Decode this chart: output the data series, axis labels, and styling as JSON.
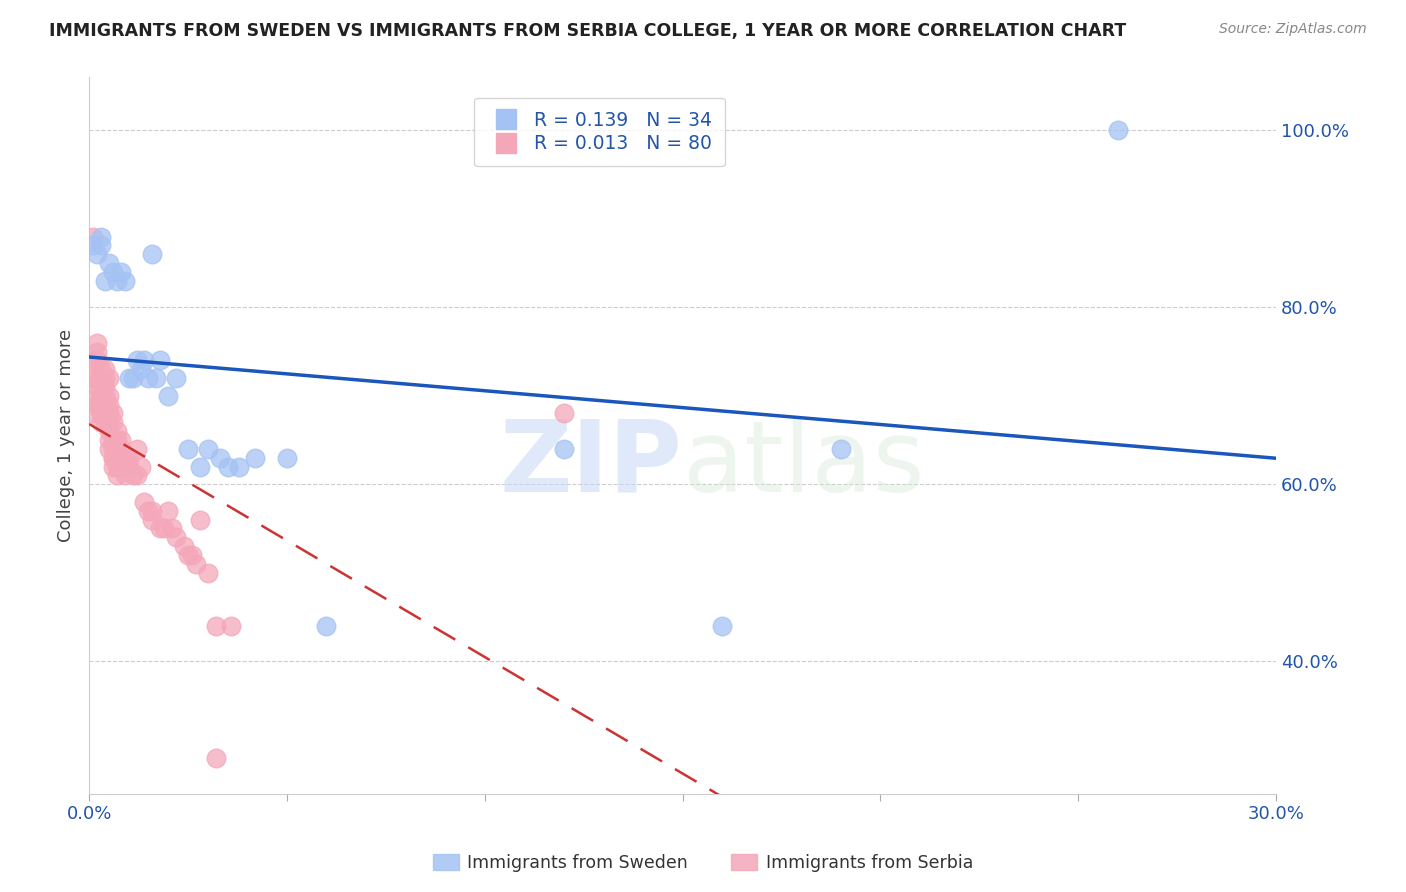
{
  "title": "IMMIGRANTS FROM SWEDEN VS IMMIGRANTS FROM SERBIA COLLEGE, 1 YEAR OR MORE CORRELATION CHART",
  "source": "Source: ZipAtlas.com",
  "ylabel": "College, 1 year or more",
  "legend_sweden": "Immigrants from Sweden",
  "legend_serbia": "Immigrants from Serbia",
  "R_sweden": 0.139,
  "N_sweden": 34,
  "R_serbia": 0.013,
  "N_serbia": 80,
  "xlim": [
    0.0,
    0.3
  ],
  "ylim": [
    0.25,
    1.06
  ],
  "xticks": [
    0.0,
    0.05,
    0.1,
    0.15,
    0.2,
    0.25,
    0.3
  ],
  "xtick_labels": [
    "0.0%",
    "",
    "",
    "",
    "",
    "",
    "30.0%"
  ],
  "yticks_right": [
    0.4,
    0.6,
    0.8,
    1.0
  ],
  "ytick_labels_right": [
    "40.0%",
    "60.0%",
    "80.0%",
    "100.0%"
  ],
  "color_sweden": "#a4c2f4",
  "color_serbia": "#f4a7b9",
  "trendline_sweden_color": "#1a56bb",
  "trendline_serbia_color": "#cc3333",
  "background_color": "#ffffff",
  "grid_color": "#cccccc",
  "watermark_zip": "ZIP",
  "watermark_atlas": "atlas",
  "sweden_x": [
    0.001,
    0.002,
    0.003,
    0.003,
    0.004,
    0.005,
    0.006,
    0.007,
    0.008,
    0.009,
    0.01,
    0.011,
    0.012,
    0.013,
    0.014,
    0.015,
    0.016,
    0.017,
    0.018,
    0.02,
    0.022,
    0.025,
    0.028,
    0.03,
    0.033,
    0.035,
    0.038,
    0.042,
    0.05,
    0.06,
    0.12,
    0.16,
    0.19,
    0.26
  ],
  "sweden_y": [
    0.87,
    0.86,
    0.88,
    0.87,
    0.83,
    0.85,
    0.84,
    0.83,
    0.84,
    0.83,
    0.72,
    0.72,
    0.74,
    0.73,
    0.74,
    0.72,
    0.86,
    0.72,
    0.74,
    0.7,
    0.72,
    0.64,
    0.62,
    0.64,
    0.63,
    0.62,
    0.62,
    0.63,
    0.63,
    0.44,
    0.64,
    0.44,
    0.64,
    1.0
  ],
  "serbia_x": [
    0.001,
    0.001,
    0.001,
    0.001,
    0.002,
    0.002,
    0.002,
    0.002,
    0.002,
    0.002,
    0.002,
    0.003,
    0.003,
    0.003,
    0.003,
    0.003,
    0.003,
    0.003,
    0.003,
    0.003,
    0.004,
    0.004,
    0.004,
    0.004,
    0.004,
    0.004,
    0.004,
    0.005,
    0.005,
    0.005,
    0.005,
    0.005,
    0.005,
    0.005,
    0.005,
    0.006,
    0.006,
    0.006,
    0.006,
    0.006,
    0.006,
    0.006,
    0.007,
    0.007,
    0.007,
    0.007,
    0.007,
    0.007,
    0.008,
    0.008,
    0.008,
    0.008,
    0.009,
    0.009,
    0.009,
    0.01,
    0.01,
    0.011,
    0.012,
    0.012,
    0.013,
    0.014,
    0.015,
    0.016,
    0.016,
    0.018,
    0.019,
    0.02,
    0.021,
    0.022,
    0.024,
    0.025,
    0.026,
    0.027,
    0.028,
    0.03,
    0.032,
    0.036,
    0.032,
    0.12
  ],
  "serbia_y": [
    0.72,
    0.74,
    0.88,
    0.68,
    0.76,
    0.75,
    0.74,
    0.72,
    0.7,
    0.69,
    0.71,
    0.72,
    0.73,
    0.72,
    0.7,
    0.69,
    0.68,
    0.7,
    0.68,
    0.67,
    0.73,
    0.72,
    0.71,
    0.7,
    0.68,
    0.68,
    0.67,
    0.72,
    0.7,
    0.69,
    0.68,
    0.67,
    0.66,
    0.65,
    0.64,
    0.68,
    0.67,
    0.65,
    0.64,
    0.63,
    0.63,
    0.62,
    0.66,
    0.65,
    0.64,
    0.63,
    0.62,
    0.61,
    0.65,
    0.64,
    0.63,
    0.62,
    0.63,
    0.62,
    0.61,
    0.63,
    0.62,
    0.61,
    0.64,
    0.61,
    0.62,
    0.58,
    0.57,
    0.57,
    0.56,
    0.55,
    0.55,
    0.57,
    0.55,
    0.54,
    0.53,
    0.52,
    0.52,
    0.51,
    0.56,
    0.5,
    0.44,
    0.44,
    0.29,
    0.68
  ]
}
